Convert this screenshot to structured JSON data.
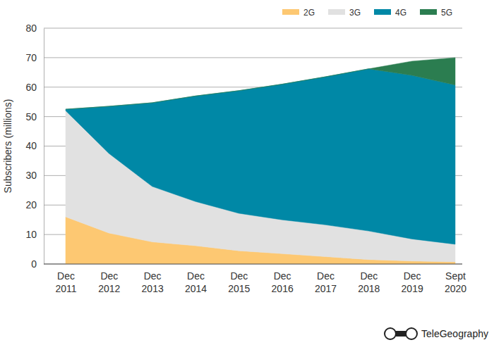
{
  "chart_data": {
    "type": "area",
    "stacked": true,
    "grid": true,
    "legend": "top",
    "y_label": "Subscribers (millions)",
    "categories": [
      "Dec 2011",
      "Dec 2012",
      "Dec 2013",
      "Dec 2014",
      "Dec 2015",
      "Dec 2016",
      "Dec 2017",
      "Dec 2018",
      "Dec 2019",
      "Sept 2020"
    ],
    "series": [
      {
        "name": "2G",
        "color": "#fdc872",
        "values": [
          16,
          10.5,
          7.5,
          6.2,
          4.5,
          3.5,
          2.5,
          1.5,
          1,
          0.7
        ]
      },
      {
        "name": "3G",
        "color": "#e1e1e1",
        "values": [
          36,
          27,
          18.8,
          15,
          12.7,
          11.5,
          10.8,
          9.7,
          7.5,
          6
        ]
      },
      {
        "name": "4G",
        "color": "#0088a6",
        "values": [
          0.5,
          16,
          28.4,
          35.8,
          41.6,
          46,
          50.2,
          55,
          55.5,
          54
        ]
      },
      {
        "name": "5G",
        "color": "#2b7d50",
        "values": [
          0,
          0,
          0,
          0,
          0,
          0,
          0,
          0,
          4.8,
          9.3
        ]
      }
    ],
    "ylim": [
      0,
      80
    ],
    "yticks": [
      0,
      10,
      20,
      30,
      40,
      50,
      60,
      70,
      80
    ],
    "annotations": [
      "TeleGeography"
    ]
  }
}
